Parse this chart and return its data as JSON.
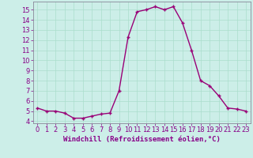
{
  "hours": [
    0,
    1,
    2,
    3,
    4,
    5,
    6,
    7,
    8,
    9,
    10,
    11,
    12,
    13,
    14,
    15,
    16,
    17,
    18,
    19,
    20,
    21,
    22,
    23
  ],
  "values": [
    5.3,
    5.0,
    5.0,
    4.8,
    4.3,
    4.3,
    4.5,
    4.7,
    4.8,
    7.0,
    12.3,
    14.8,
    15.0,
    15.3,
    15.0,
    15.3,
    13.7,
    11.0,
    8.0,
    7.5,
    6.5,
    5.3,
    5.2,
    5.0
  ],
  "line_color": "#990077",
  "marker": "+",
  "marker_size": 3,
  "line_width": 1.0,
  "xlabel": "Windchill (Refroidissement éolien,°C)",
  "xlabel_fontsize": 6.5,
  "background_color": "#cceee8",
  "grid_color": "#aaddcc",
  "ylim": [
    3.8,
    15.8
  ],
  "yticks": [
    4,
    5,
    6,
    7,
    8,
    9,
    10,
    11,
    12,
    13,
    14,
    15
  ],
  "xticks": [
    0,
    1,
    2,
    3,
    4,
    5,
    6,
    7,
    8,
    9,
    10,
    11,
    12,
    13,
    14,
    15,
    16,
    17,
    18,
    19,
    20,
    21,
    22,
    23
  ],
  "tick_fontsize": 6.0,
  "spine_color": "#888899"
}
